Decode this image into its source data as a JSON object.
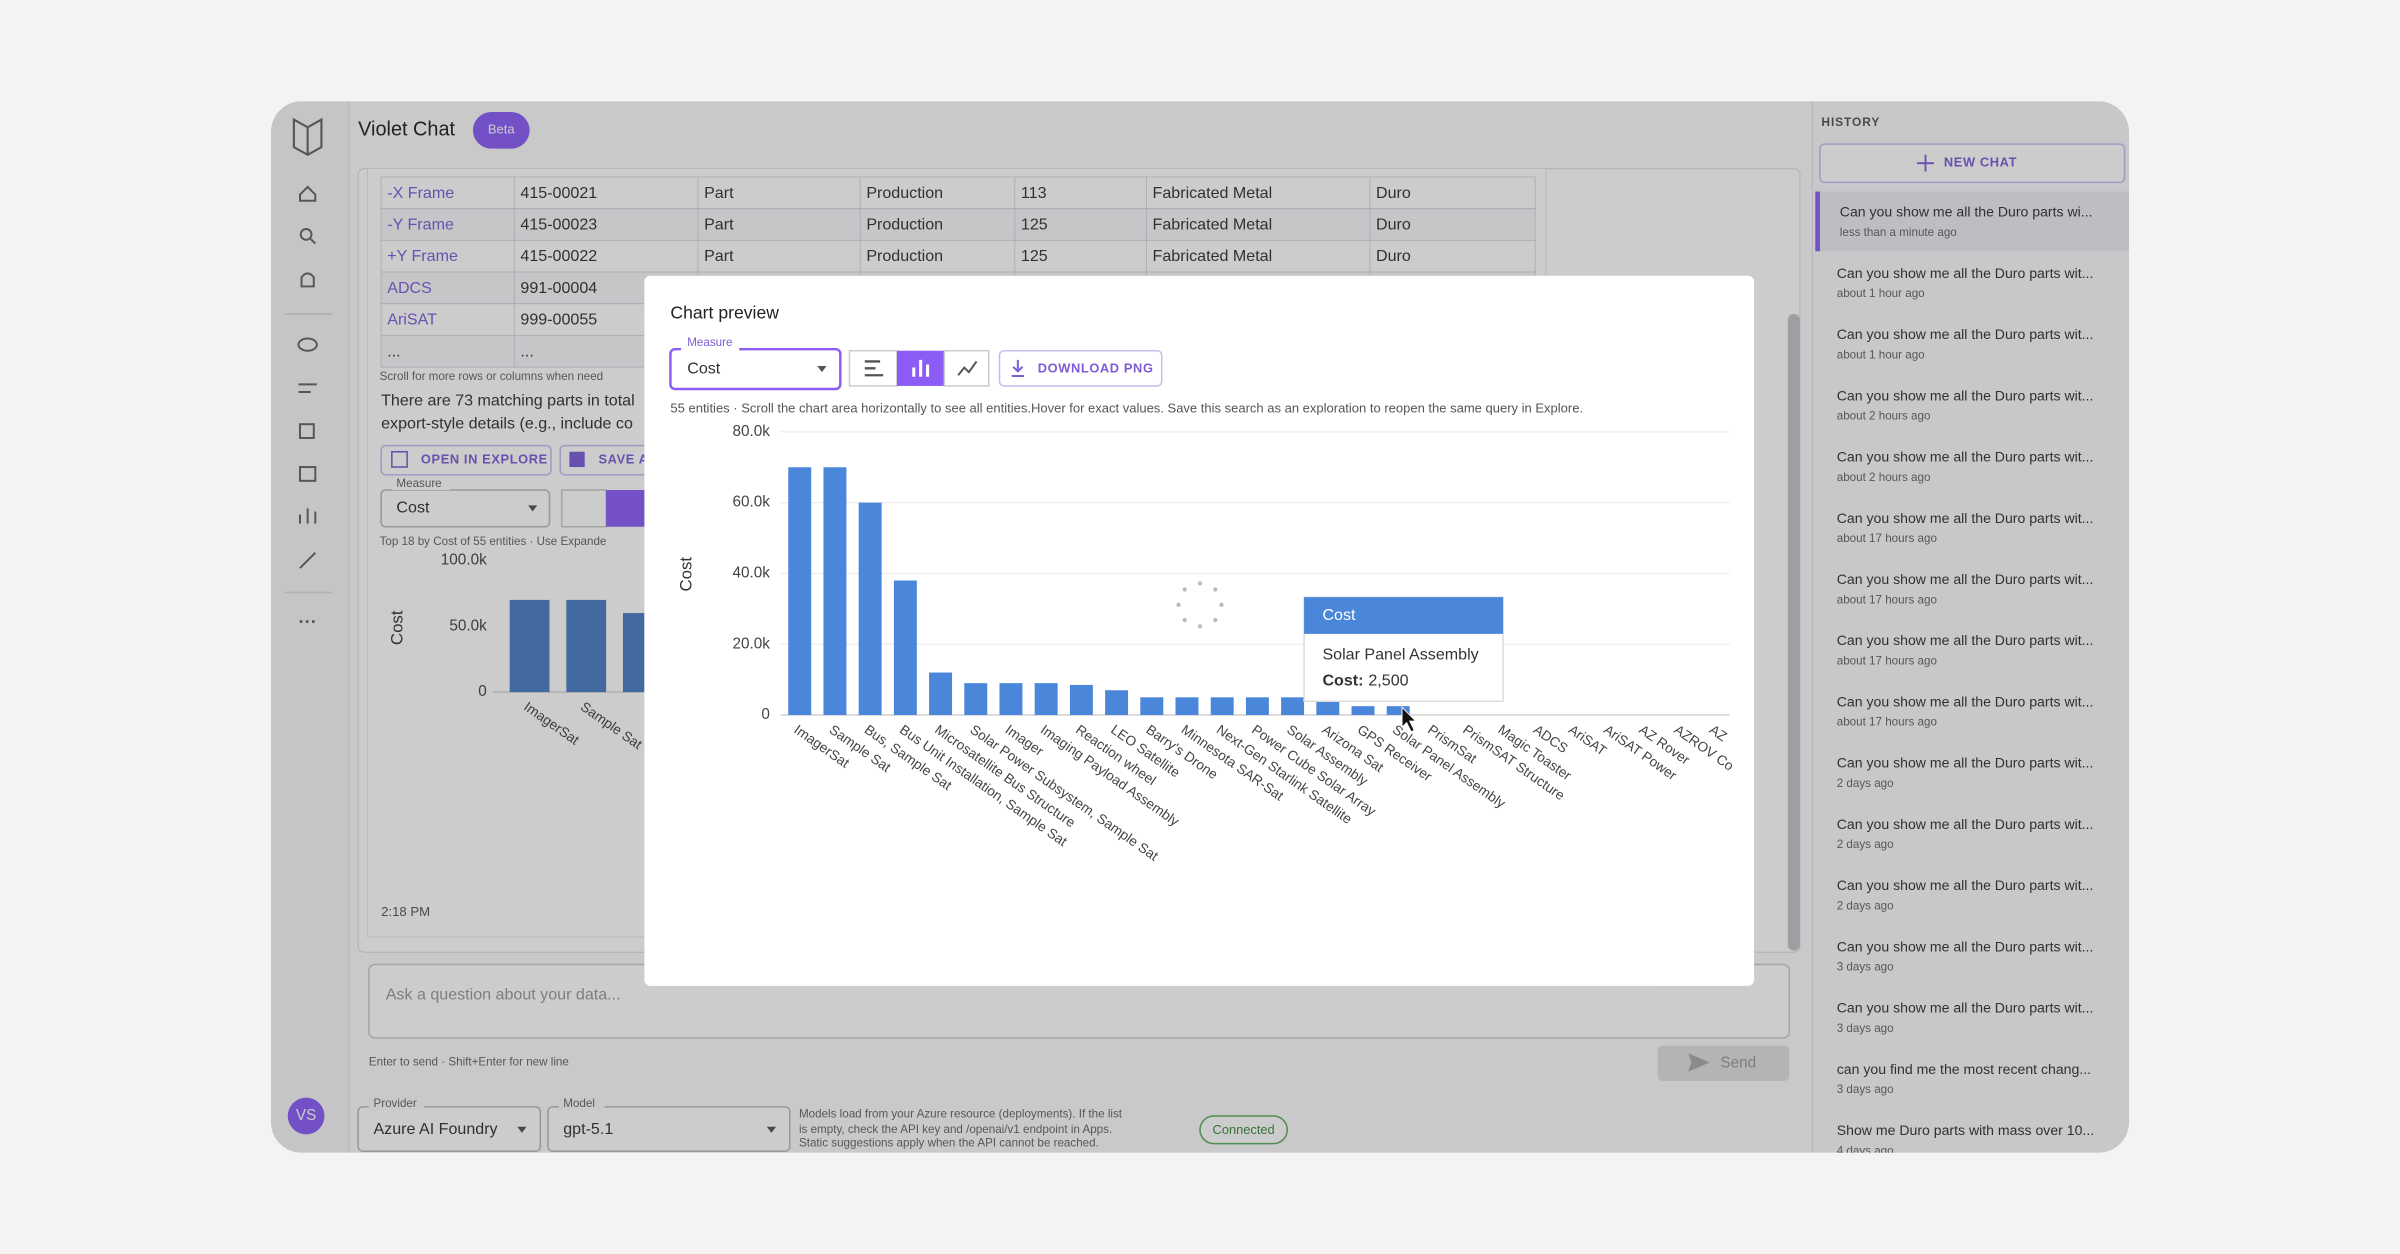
{
  "app": {
    "title": "Violet Chat",
    "badge": "Beta"
  },
  "table": {
    "rows": [
      [
        "-X Frame",
        "415-00021",
        "Part",
        "Production",
        "113",
        "Fabricated Metal",
        "Duro"
      ],
      [
        "-Y Frame",
        "415-00023",
        "Part",
        "Production",
        "125",
        "Fabricated Metal",
        "Duro"
      ],
      [
        "+Y Frame",
        "415-00022",
        "Part",
        "Production",
        "125",
        "Fabricated Metal",
        "Duro"
      ],
      [
        "ADCS",
        "991-00004"
      ],
      [
        "AriSAT",
        "999-00055"
      ],
      [
        "...",
        "..."
      ]
    ]
  },
  "message": {
    "scroll_note": "Scroll for more rows or columns when need",
    "summary": [
      "There are 73 matching parts in total",
      "export-style details (e.g., include co"
    ],
    "open_button": "OPEN IN EXPLORE",
    "save_button": "SAVE A",
    "measure_label": "Measure",
    "measure_value": "Cost",
    "caption": "Top 18 by Cost of 55 entities · Use Expande",
    "time": "2:18 PM"
  },
  "composer": {
    "placeholder": "Ask a question about your data...",
    "hint": "Enter to send · Shift+Enter for new line",
    "send": "Send"
  },
  "footer": {
    "provider_label": "Provider",
    "provider": "Azure AI Foundry",
    "model_label": "Model",
    "model": "gpt-5.1",
    "note": [
      "Models load from your Azure resource (deployments). If the list",
      "is empty, check the API key and /openai/v1 endpoint in Apps.",
      "Static suggestions apply when the API cannot be reached."
    ],
    "status": "Connected"
  },
  "user": {
    "initials": "VS"
  },
  "history": {
    "title": "HISTORY",
    "new_chat": "NEW CHAT",
    "items": [
      {
        "text": "Can you show me all the Duro parts wi...",
        "time": "less than a minute ago"
      },
      {
        "text": "Can you show me all the Duro parts wit...",
        "time": "about 1 hour ago"
      },
      {
        "text": "Can you show me all the Duro parts wit...",
        "time": "about 1 hour ago"
      },
      {
        "text": "Can you show me all the Duro parts wit...",
        "time": "about 2 hours ago"
      },
      {
        "text": "Can you show me all the Duro parts wit...",
        "time": "about 2 hours ago"
      },
      {
        "text": "Can you show me all the Duro parts wit...",
        "time": "about 17 hours ago"
      },
      {
        "text": "Can you show me all the Duro parts wit...",
        "time": "about 17 hours ago"
      },
      {
        "text": "Can you show me all the Duro parts wit...",
        "time": "about 17 hours ago"
      },
      {
        "text": "Can you show me all the Duro parts wit...",
        "time": "about 17 hours ago"
      },
      {
        "text": "Can you show me all the Duro parts wit...",
        "time": "2 days ago"
      },
      {
        "text": "Can you show me all the Duro parts wit...",
        "time": "2 days ago"
      },
      {
        "text": "Can you show me all the Duro parts wit...",
        "time": "2 days ago"
      },
      {
        "text": "Can you show me all the Duro parts wit...",
        "time": "3 days ago"
      },
      {
        "text": "Can you show me all the Duro parts wit...",
        "time": "3 days ago"
      },
      {
        "text": "can you find me the most recent chang...",
        "time": "3 days ago"
      },
      {
        "text": "Show me Duro parts with mass over 10...",
        "time": "4 days ago"
      }
    ]
  },
  "modal": {
    "title": "Chart preview",
    "measure_label": "Measure",
    "measure_value": "Cost",
    "download": "DOWNLOAD PNG",
    "note": "55 entities · Scroll the chart area horizontally to see all entities.Hover for exact values. Save this search as an exploration to reopen the same query in Explore.",
    "tooltip": {
      "title": "Cost",
      "category": "Solar Panel Assembly",
      "label": "Cost:",
      "value": "2,500"
    }
  },
  "chart_data": [
    {
      "type": "bar",
      "y_label": "Cost",
      "categories": [
        "ImagerSat",
        "Sample Sat",
        "Bus, Sample Sat",
        "Bus Unit Installation, Sample Sat",
        "Microsatellite Bus Structure",
        "Solar Power Subsystem, Sample Sat",
        "Imager",
        "Imaging Payload Assembly",
        "Reaction wheel",
        "LEO Satellite",
        "Barry's Drone",
        "Minnesota SAR-Sat",
        "Next-Gen Starlink Satellite",
        "Power Cube Solar Array",
        "Solar Assembly",
        "Arizona Sat",
        "GPS Receiver",
        "Solar Panel Assembly",
        "PrismSat",
        "PrismSAT Structure",
        "Magic Toaster",
        "ADCS",
        "AriSAT",
        "AriSAT Power",
        "AZ Rover",
        "AZROV Co",
        "AZ"
      ],
      "values": [
        70000,
        70000,
        60000,
        38000,
        12000,
        9000,
        9000,
        9000,
        8500,
        7000,
        5000,
        5000,
        5000,
        5000,
        5000,
        5000,
        2500,
        2500,
        0,
        0,
        0,
        0,
        0,
        0,
        0,
        0,
        0
      ],
      "color": "#4a86d9",
      "ylim": [
        0,
        80000
      ],
      "yticks": [
        0,
        {
          "value": 20000,
          "label": "20.0k"
        },
        {
          "value": 40000,
          "label": "40.0k"
        },
        {
          "value": 60000,
          "label": "60.0k"
        },
        {
          "value": 80000,
          "label": "80.0k"
        }
      ],
      "grid": true
    },
    {
      "type": "bar",
      "y_label": "Cost",
      "categories": [
        "ImagerSat",
        "Sample Sat",
        null
      ],
      "values": [
        70000,
        70000,
        60000
      ],
      "color": "#4a7ec4",
      "ylim": [
        0,
        100000
      ],
      "yticks": [
        0,
        {
          "value": 50000,
          "label": "50.0k"
        },
        {
          "value": 100000,
          "label": "100.0k"
        }
      ],
      "grid": false
    }
  ]
}
